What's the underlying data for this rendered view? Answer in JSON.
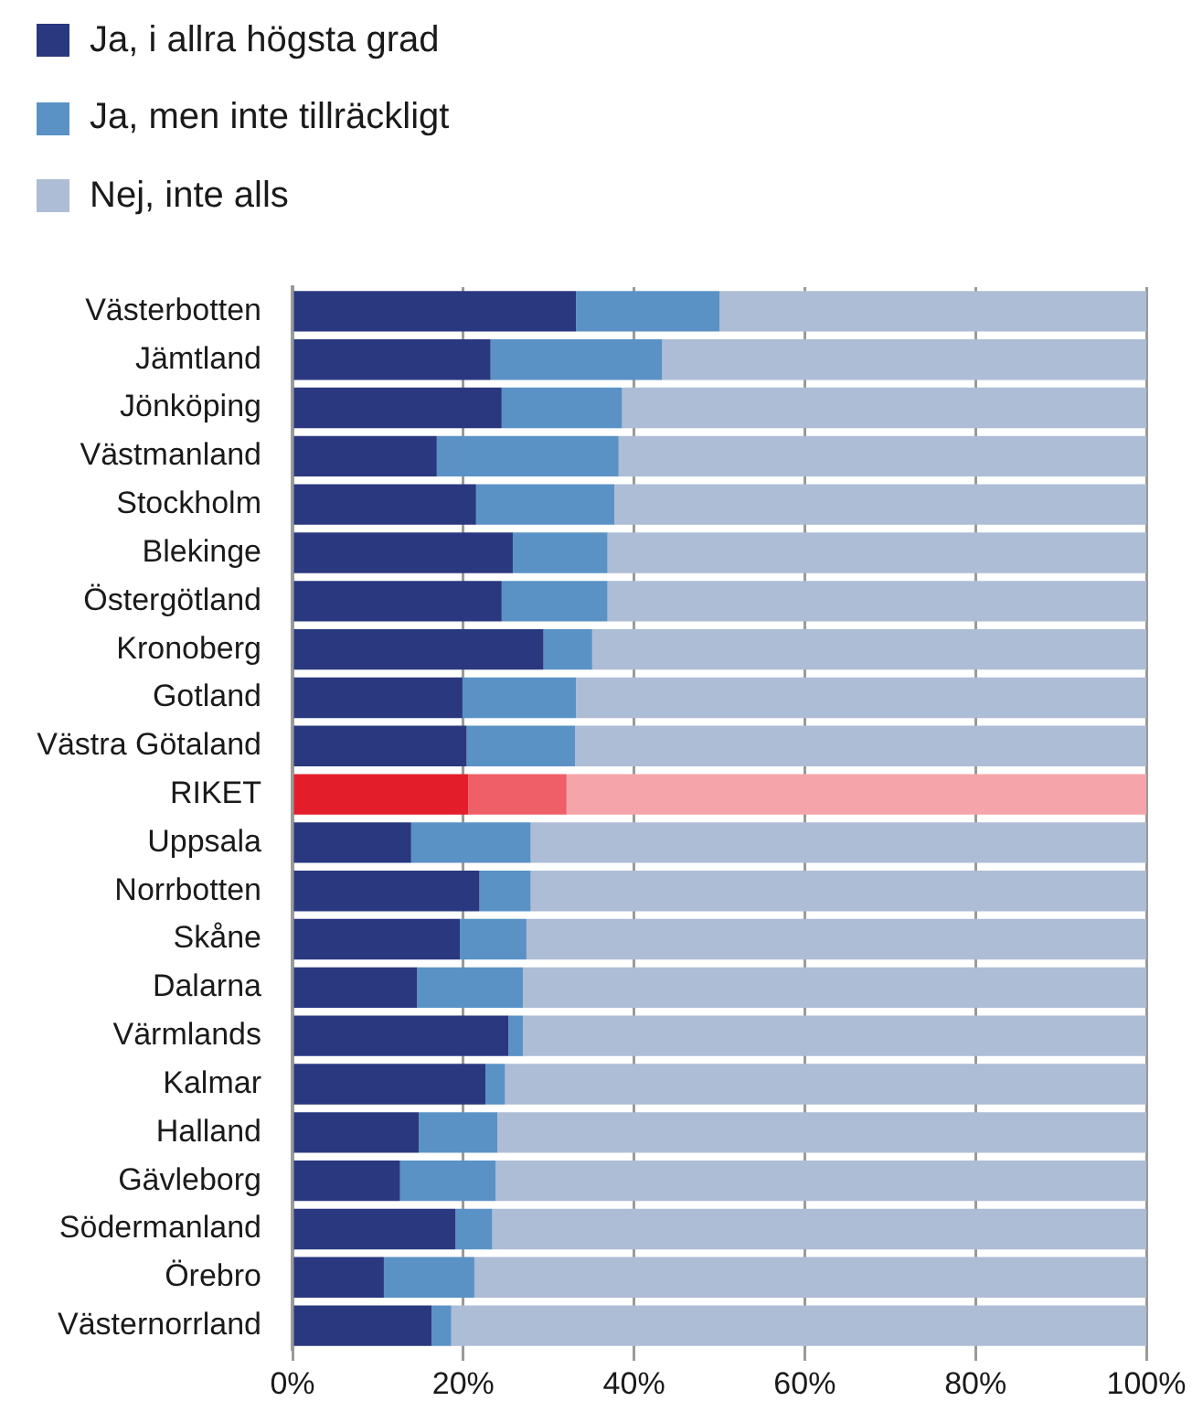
{
  "chart_data": {
    "type": "bar",
    "orientation": "horizontal",
    "stacked": true,
    "categories": [
      "Västerbotten",
      "Jämtland",
      "Jönköping",
      "Västmanland",
      "Stockholm",
      "Blekinge",
      "Östergötland",
      "Kronoberg",
      "Gotland",
      "Västra Götaland",
      "RIKET",
      "Uppsala",
      "Norrbotten",
      "Skåne",
      "Dalarna",
      "Värmlands",
      "Kalmar",
      "Halland",
      "Gävleborg",
      "Södermanland",
      "Örebro",
      "Västernorrland"
    ],
    "series": [
      {
        "name": "Ja, i allra högsta grad",
        "color": "#2a3880",
        "colors": [
          "#2a3880",
          "#2a3880",
          "#2a3880",
          "#2a3880",
          "#2a3880",
          "#2a3880",
          "#2a3880",
          "#2a3880",
          "#2a3880",
          "#2a3880",
          "#e31e2a",
          "#2a3880",
          "#2a3880",
          "#2a3880",
          "#2a3880",
          "#2a3880",
          "#2a3880",
          "#2a3880",
          "#2a3880",
          "#2a3880",
          "#2a3880",
          "#2a3880"
        ],
        "values": [
          33.2,
          23.2,
          24.5,
          16.9,
          21.5,
          25.8,
          24.5,
          29.4,
          19.9,
          20.4,
          20.6,
          13.9,
          21.9,
          19.6,
          14.6,
          25.3,
          22.6,
          14.8,
          12.6,
          19.1,
          10.7,
          16.3
        ]
      },
      {
        "name": "Ja, men inte tillräckligt",
        "color": "#5a92c6",
        "colors": [
          "#5a92c6",
          "#5a92c6",
          "#5a92c6",
          "#5a92c6",
          "#5a92c6",
          "#5a92c6",
          "#5a92c6",
          "#5a92c6",
          "#5a92c6",
          "#5a92c6",
          "#ef5f68",
          "#5a92c6",
          "#5a92c6",
          "#5a92c6",
          "#5a92c6",
          "#5a92c6",
          "#5a92c6",
          "#5a92c6",
          "#5a92c6",
          "#5a92c6",
          "#5a92c6",
          "#5a92c6"
        ],
        "values": [
          16.8,
          20.1,
          14.1,
          21.3,
          16.2,
          11.1,
          12.4,
          5.7,
          13.3,
          12.7,
          11.5,
          14.0,
          6.0,
          7.8,
          12.4,
          1.7,
          2.3,
          9.2,
          11.2,
          4.3,
          10.6,
          2.3
        ]
      },
      {
        "name": "Nej, inte alls",
        "color": "#adbdd5",
        "colors": [
          "#adbdd5",
          "#adbdd5",
          "#adbdd5",
          "#adbdd5",
          "#adbdd5",
          "#adbdd5",
          "#adbdd5",
          "#adbdd5",
          "#adbdd5",
          "#adbdd5",
          "#f5a5aa",
          "#adbdd5",
          "#adbdd5",
          "#adbdd5",
          "#adbdd5",
          "#adbdd5",
          "#adbdd5",
          "#adbdd5",
          "#adbdd5",
          "#adbdd5",
          "#adbdd5",
          "#adbdd5"
        ],
        "values": [
          50.0,
          56.7,
          61.4,
          61.8,
          62.3,
          63.1,
          63.1,
          64.9,
          66.8,
          66.9,
          67.9,
          72.1,
          72.1,
          72.6,
          73.0,
          73.0,
          75.1,
          76.0,
          76.2,
          76.6,
          78.7,
          81.4
        ]
      }
    ],
    "xlim": [
      0,
      100
    ],
    "xticks": [
      {
        "value": 0,
        "label": "0%"
      },
      {
        "value": 20,
        "label": "20%"
      },
      {
        "value": 40,
        "label": "40%"
      },
      {
        "value": 60,
        "label": "60%"
      },
      {
        "value": 80,
        "label": "80%"
      },
      {
        "value": 100,
        "label": "100%"
      }
    ],
    "grid": "x",
    "legend": "top left"
  }
}
